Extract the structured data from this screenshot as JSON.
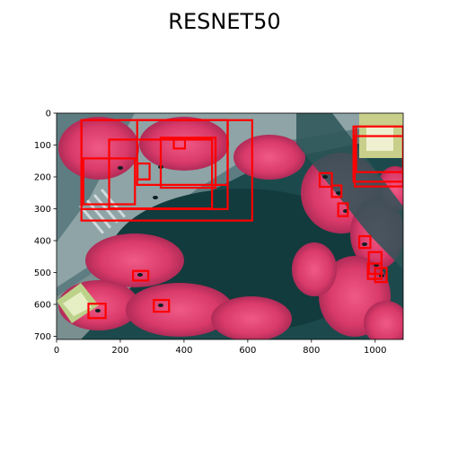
{
  "figure": {
    "title": "RESNET50"
  },
  "axes": {
    "x_ticks": [
      "0",
      "200",
      "400",
      "600",
      "800",
      "1000"
    ],
    "y_ticks": [
      "0",
      "100",
      "200",
      "300",
      "400",
      "500",
      "600",
      "700"
    ],
    "xlim": [
      0,
      1088
    ],
    "ylim": [
      710,
      0
    ]
  },
  "detections": {
    "box_color": "#ff0000",
    "boxes": [
      [
        78,
        22,
        614,
        337
      ],
      [
        78,
        22,
        537,
        301
      ],
      [
        253,
        22,
        537,
        225
      ],
      [
        165,
        83,
        488,
        299
      ],
      [
        84,
        142,
        246,
        286
      ],
      [
        327,
        77,
        499,
        234
      ],
      [
        368,
        83,
        403,
        111
      ],
      [
        254,
        158,
        292,
        208
      ],
      [
        826,
        188,
        864,
        231
      ],
      [
        864,
        227,
        894,
        263
      ],
      [
        884,
        283,
        914,
        323
      ],
      [
        950,
        386,
        985,
        423
      ],
      [
        980,
        436,
        1020,
        504
      ],
      [
        977,
        472,
        1020,
        520
      ],
      [
        1000,
        486,
        1036,
        530
      ],
      [
        240,
        495,
        288,
        525
      ],
      [
        305,
        586,
        353,
        623
      ],
      [
        100,
        598,
        154,
        643
      ],
      [
        932,
        42,
        1088,
        215
      ],
      [
        940,
        42,
        1088,
        185
      ],
      [
        936,
        72,
        1088,
        230
      ]
    ]
  }
}
